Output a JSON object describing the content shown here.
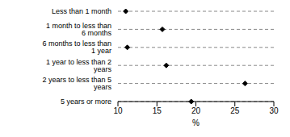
{
  "chart_data": {
    "type": "scatter",
    "orientation": "horizontal",
    "categories": [
      "Less than 1 month",
      "1 month to less than 6 months",
      "6 months to less than 1 year",
      "1 year to less than 2 years",
      "2 years to less than 5 years",
      "5 years or more"
    ],
    "values": [
      11.0,
      15.7,
      11.2,
      16.2,
      26.3,
      19.4
    ],
    "xlabel": "%",
    "xlim": [
      10,
      30
    ],
    "xticks": [
      10,
      15,
      20,
      25,
      30
    ],
    "grid": true,
    "color": "#000000",
    "marker": "diamond"
  }
}
